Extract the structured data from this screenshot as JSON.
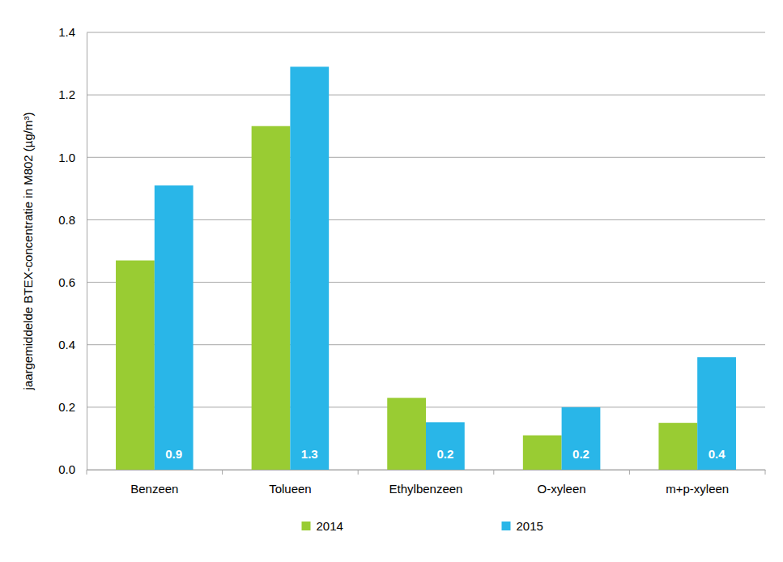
{
  "chart_data": {
    "type": "bar",
    "y_label": "jaargemiddelde BTEX-concentratie in M802 (µg/m³)",
    "categories": [
      "Benzeen",
      "Tolueen",
      "Ethylbenzeen",
      "O-xyleen",
      "m+p-xyleen"
    ],
    "series": [
      {
        "name": "2014",
        "color": "#99cc33",
        "values": [
          0.67,
          1.1,
          0.23,
          0.11,
          0.15
        ]
      },
      {
        "name": "2015",
        "color": "#29b6e8",
        "values": [
          0.91,
          1.29,
          0.152,
          0.2,
          0.36
        ],
        "data_labels": true,
        "value_labels": [
          "0.9",
          "1.3",
          "0.2",
          "0.2",
          "0.4"
        ]
      }
    ],
    "ylim": [
      0,
      1.4
    ],
    "yticks": [
      {
        "value": 0,
        "label": "0.0"
      },
      0.2,
      0.4,
      0.6,
      0.8,
      {
        "value": 1,
        "label": "1.0"
      },
      1.2,
      1.4
    ],
    "grid": true,
    "legend": "bottom"
  }
}
